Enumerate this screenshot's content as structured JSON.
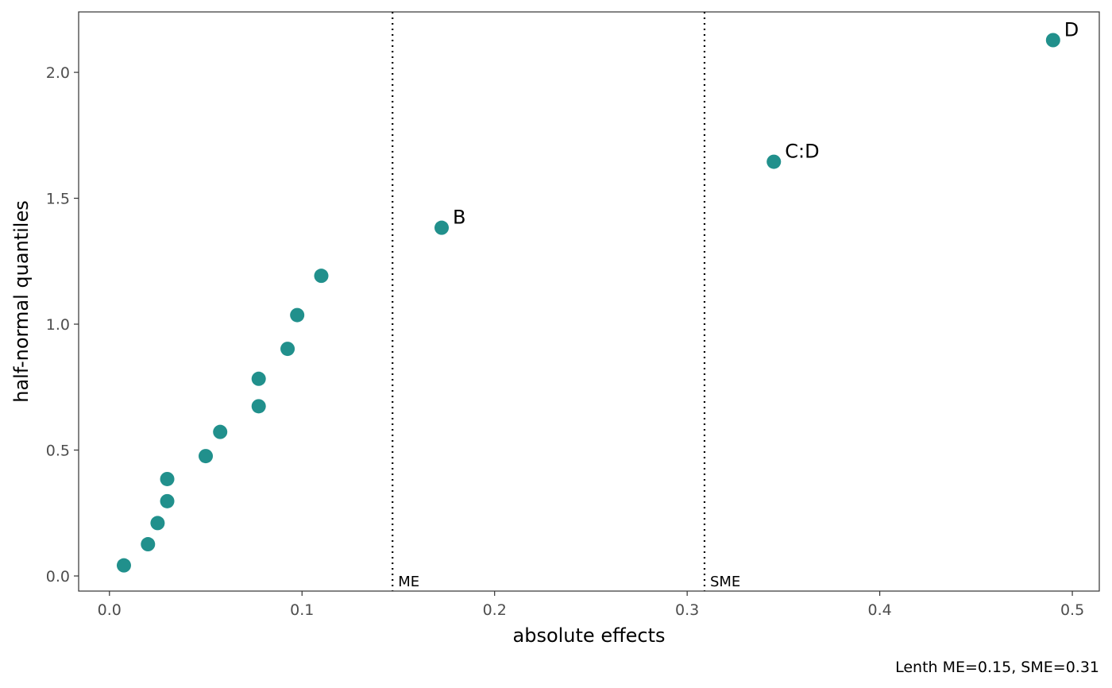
{
  "chart_data": {
    "type": "scatter",
    "xlabel": "absolute effects",
    "ylabel": "half-normal quantiles",
    "xlim": [
      -0.016,
      0.514
    ],
    "ylim": [
      -0.06,
      2.24
    ],
    "xticks": [
      0.0,
      0.1,
      0.2,
      0.3,
      0.4,
      0.5
    ],
    "xtick_labels": [
      "0.0",
      "0.1",
      "0.2",
      "0.3",
      "0.4",
      "0.5"
    ],
    "yticks": [
      0.0,
      0.5,
      1.0,
      1.5,
      2.0
    ],
    "ytick_labels": [
      "0.0",
      "0.5",
      "1.0",
      "1.5",
      "2.0"
    ],
    "grid": false,
    "point_color": "#21908C",
    "points": [
      {
        "x": 0.0075,
        "y": 0.042,
        "label": ""
      },
      {
        "x": 0.02,
        "y": 0.126,
        "label": ""
      },
      {
        "x": 0.025,
        "y": 0.21,
        "label": ""
      },
      {
        "x": 0.03,
        "y": 0.297,
        "label": ""
      },
      {
        "x": 0.03,
        "y": 0.385,
        "label": ""
      },
      {
        "x": 0.05,
        "y": 0.476,
        "label": ""
      },
      {
        "x": 0.0575,
        "y": 0.572,
        "label": ""
      },
      {
        "x": 0.0775,
        "y": 0.674,
        "label": ""
      },
      {
        "x": 0.0775,
        "y": 0.783,
        "label": ""
      },
      {
        "x": 0.0925,
        "y": 0.902,
        "label": ""
      },
      {
        "x": 0.0975,
        "y": 1.036,
        "label": ""
      },
      {
        "x": 0.11,
        "y": 1.192,
        "label": ""
      },
      {
        "x": 0.1725,
        "y": 1.383,
        "label": "B"
      },
      {
        "x": 0.345,
        "y": 1.645,
        "label": "C:D"
      },
      {
        "x": 0.49,
        "y": 2.128,
        "label": "D"
      }
    ],
    "reference_lines": [
      {
        "x": 0.147,
        "label": "ME",
        "style": "dotted"
      },
      {
        "x": 0.309,
        "label": "SME",
        "style": "dotted"
      }
    ],
    "caption": "Lenth ME=0.15, SME=0.31"
  }
}
